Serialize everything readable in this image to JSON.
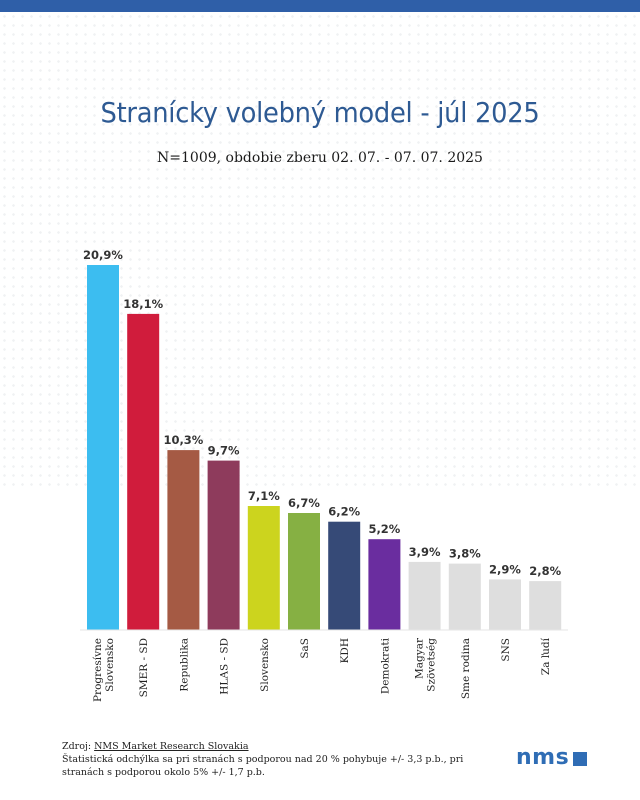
{
  "colors": {
    "top_bar": "#2f5fa8",
    "title": "#2e5a93",
    "logo": "#2f6db5"
  },
  "header": {
    "title": "Stranícky volebný model - júl 2025",
    "subtitle": "N=1009, obdobie zberu 02. 07. - 07. 07. 2025"
  },
  "chart_data": {
    "type": "bar",
    "categories": [
      "Progresívne Slovensko",
      "SMER - SD",
      "Republika",
      "HLAS - SD",
      "Slovensko",
      "SaS",
      "KDH",
      "Demokrati",
      "Magyar Szövetség",
      "Sme rodina",
      "SNS",
      "Za ľudí"
    ],
    "category_lines": [
      [
        "Progresívne",
        "Slovensko"
      ],
      [
        "SMER - SD"
      ],
      [
        "Republika"
      ],
      [
        "HLAS - SD"
      ],
      [
        "Slovensko"
      ],
      [
        "SaS"
      ],
      [
        "KDH"
      ],
      [
        "Demokrati"
      ],
      [
        "Magyar",
        "Szövetség"
      ],
      [
        "Sme rodina"
      ],
      [
        "SNS"
      ],
      [
        "Za ľudí"
      ]
    ],
    "values": [
      20.9,
      18.1,
      10.3,
      9.7,
      7.1,
      6.7,
      6.2,
      5.2,
      3.9,
      3.8,
      2.9,
      2.8
    ],
    "value_labels": [
      "20,9%",
      "18,1%",
      "10,3%",
      "9,7%",
      "7,1%",
      "6,7%",
      "6,2%",
      "5,2%",
      "3,9%",
      "3,8%",
      "2,9%",
      "2,8%"
    ],
    "colors": [
      "#3cbdf0",
      "#d01c3c",
      "#a55a44",
      "#8e3b5c",
      "#ccd41e",
      "#86b043",
      "#364a77",
      "#6a2d9f",
      "#dedede",
      "#dedede",
      "#dedede",
      "#dedede"
    ],
    "ylim": [
      0,
      21.5
    ],
    "grid": false,
    "legend": "none"
  },
  "footer": {
    "source_prefix": "Zdroj: ",
    "source_name": "NMS Market Research Slovakia",
    "note": "Štatistická odchýlka sa pri stranách s podporou nad 20 % pohybuje +/- 3,3 p.b., pri stranách s podporou okolo 5% +/- 1,7 p.b."
  },
  "logo": {
    "text": "nms"
  }
}
